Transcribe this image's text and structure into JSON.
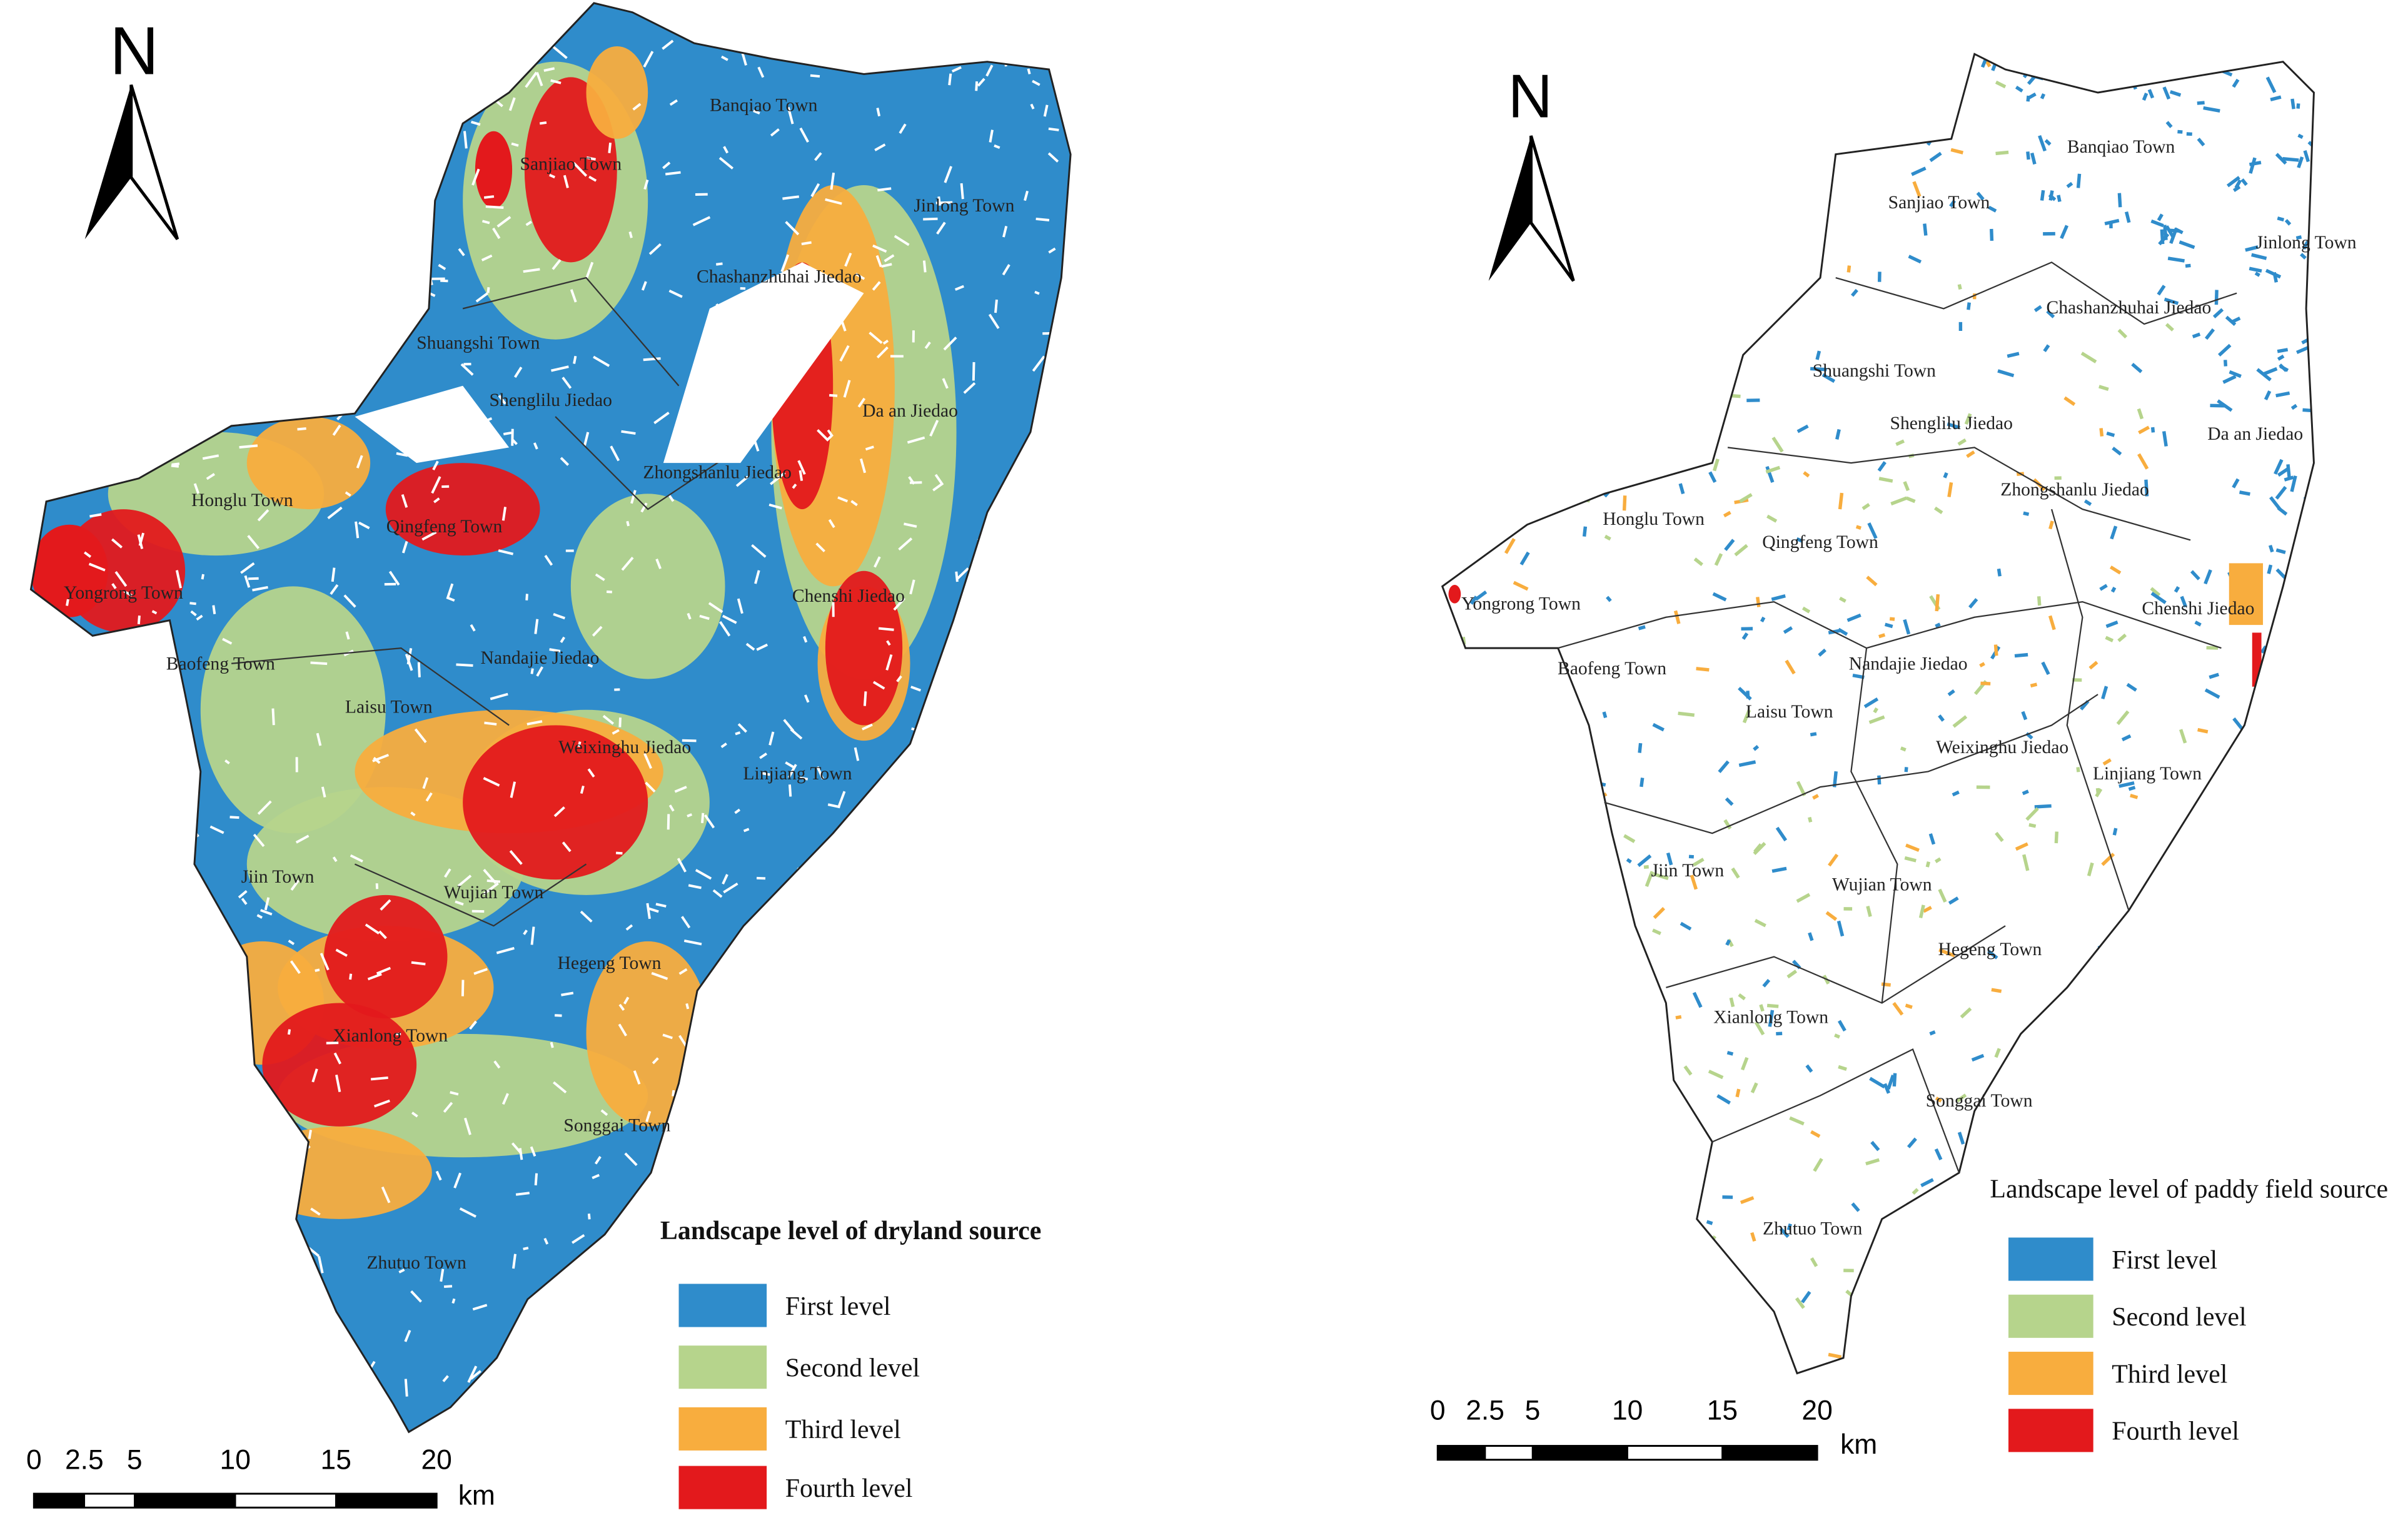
{
  "maps": [
    {
      "north": "N",
      "towns": [
        "Banqiao Town",
        "Sanjiao Town",
        "Jinlong Town",
        "Chashanzhuhai Jiedao",
        "Shuangshi Town",
        "Shenglilu Jiedao",
        "Da an Jiedao",
        "Zhongshanlu Jiedao",
        "Honglu Town",
        "Qingfeng Town",
        "Yongrong Town",
        "Chenshi Jiedao",
        "Baofeng Town",
        "Nandajie Jiedao",
        "Laisu Town",
        "Weixinghu Jiedao",
        "Linjiang Town",
        "Jiin Town",
        "Wujian Town",
        "Hegeng Town",
        "Xianlong Town",
        "Songgai Town",
        "Zhutuo Town"
      ],
      "legend": {
        "title": "Landscape level of dryland source",
        "items": [
          {
            "label": "First level",
            "color": "#2f8ccb"
          },
          {
            "label": "Second level",
            "color": "#b6d48c"
          },
          {
            "label": "Third level",
            "color": "#f8ad3e"
          },
          {
            "label": "Fourth level",
            "color": "#e3191c"
          }
        ]
      },
      "scale": {
        "ticks": [
          0,
          2.5,
          5,
          10,
          15,
          20
        ],
        "unit": "km"
      }
    },
    {
      "north": "N",
      "towns": [
        "Banqiao Town",
        "Sanjiao Town",
        "Jinlong Town",
        "Chashanzhuhai Jiedao",
        "Shuangshi Town",
        "Shenglilu Jiedao",
        "Da an Jiedao",
        "Zhongshanlu Jiedao",
        "Honglu Town",
        "Qingfeng Town",
        "Yongrong Town",
        "Chenshi Jiedao",
        "Baofeng Town",
        "Nandajie Jiedao",
        "Laisu Town",
        "Weixinghu Jiedao",
        "Linjiang Town",
        "Jiin Town",
        "Wujian Town",
        "Hegeng Town",
        "Xianlong Town",
        "Songgai Town",
        "Zhutuo Town"
      ],
      "legend": {
        "title": "Landscape level of paddy field source",
        "items": [
          {
            "label": "First level",
            "color": "#2f8ccb"
          },
          {
            "label": "Second level",
            "color": "#b6d48c"
          },
          {
            "label": "Third level",
            "color": "#f8ad3e"
          },
          {
            "label": "Fourth level",
            "color": "#e3191c"
          }
        ]
      },
      "scale": {
        "ticks": [
          0,
          2.5,
          5,
          10,
          15,
          20
        ],
        "unit": "km"
      }
    }
  ]
}
